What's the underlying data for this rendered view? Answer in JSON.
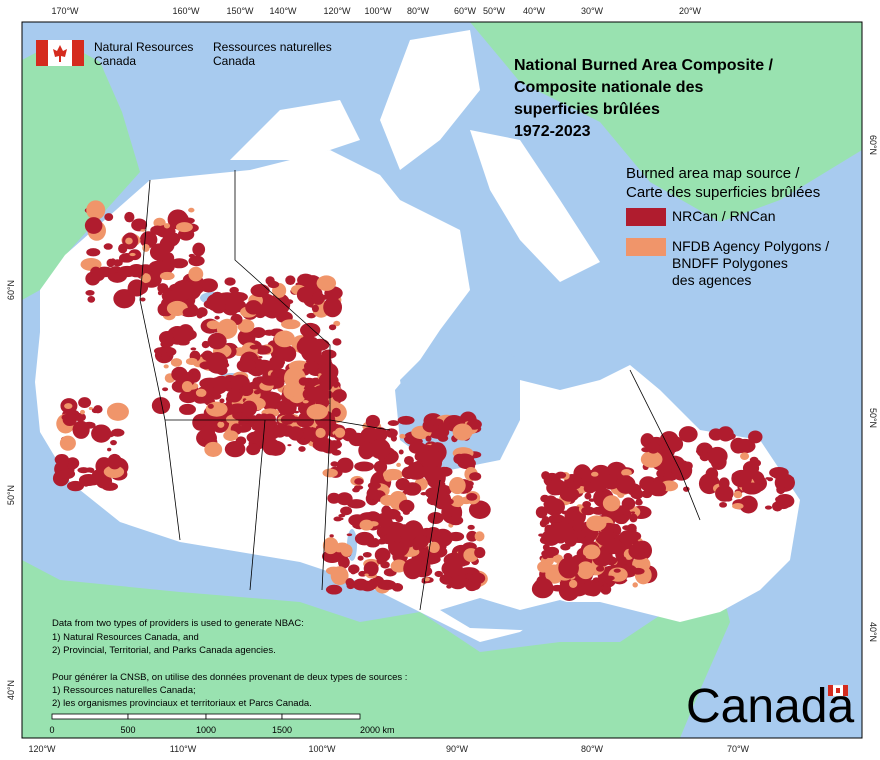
{
  "header": {
    "logo_en": [
      "Natural Resources",
      "Canada"
    ],
    "logo_fr": [
      "Ressources naturelles",
      "Canada"
    ]
  },
  "title": [
    "National Burned Area Composite /",
    "Composite nationale des",
    "superficies brûlées",
    "1972-2023"
  ],
  "legend": {
    "title": [
      "Burned area map source /",
      "Carte des superficies brûlées"
    ],
    "items": [
      {
        "label": [
          "NRCan / RNCan"
        ],
        "color": "#b01c2e"
      },
      {
        "label": [
          "NFDB Agency Polygons /",
          "BNDFF Polygones",
          "des agences"
        ],
        "color": "#f0956a"
      }
    ]
  },
  "note": [
    "Data from two types of providers is used to generate NBAC:",
    "1) Natural Resources Canada, and",
    "2) Provincial, Territorial, and Parks Canada agencies.",
    "Pour générer la CNSB, on utilise des données provenant de deux types de sources :",
    "1) Ressources naturelles Canada;",
    "2) les organismes provinciaux et territoriaux et Parcs Canada."
  ],
  "scale_bar": {
    "labels": [
      "0",
      "500",
      "1000",
      "1500",
      "2000 km"
    ]
  },
  "graticule": {
    "top": [
      "170°W",
      "160°W",
      "150°W",
      "140°W",
      "120°W",
      "100°W",
      "80°W",
      "60°W",
      "50°W",
      "40°W",
      "30°W",
      "20°W"
    ],
    "bottom": [
      "120°W",
      "110°W",
      "100°W",
      "90°W",
      "80°W",
      "70°W"
    ],
    "left": [
      "60°N",
      "50°N",
      "40°N"
    ],
    "right": [
      "60°N",
      "50°N",
      "40°N"
    ]
  },
  "wordmark": "Canada"
}
